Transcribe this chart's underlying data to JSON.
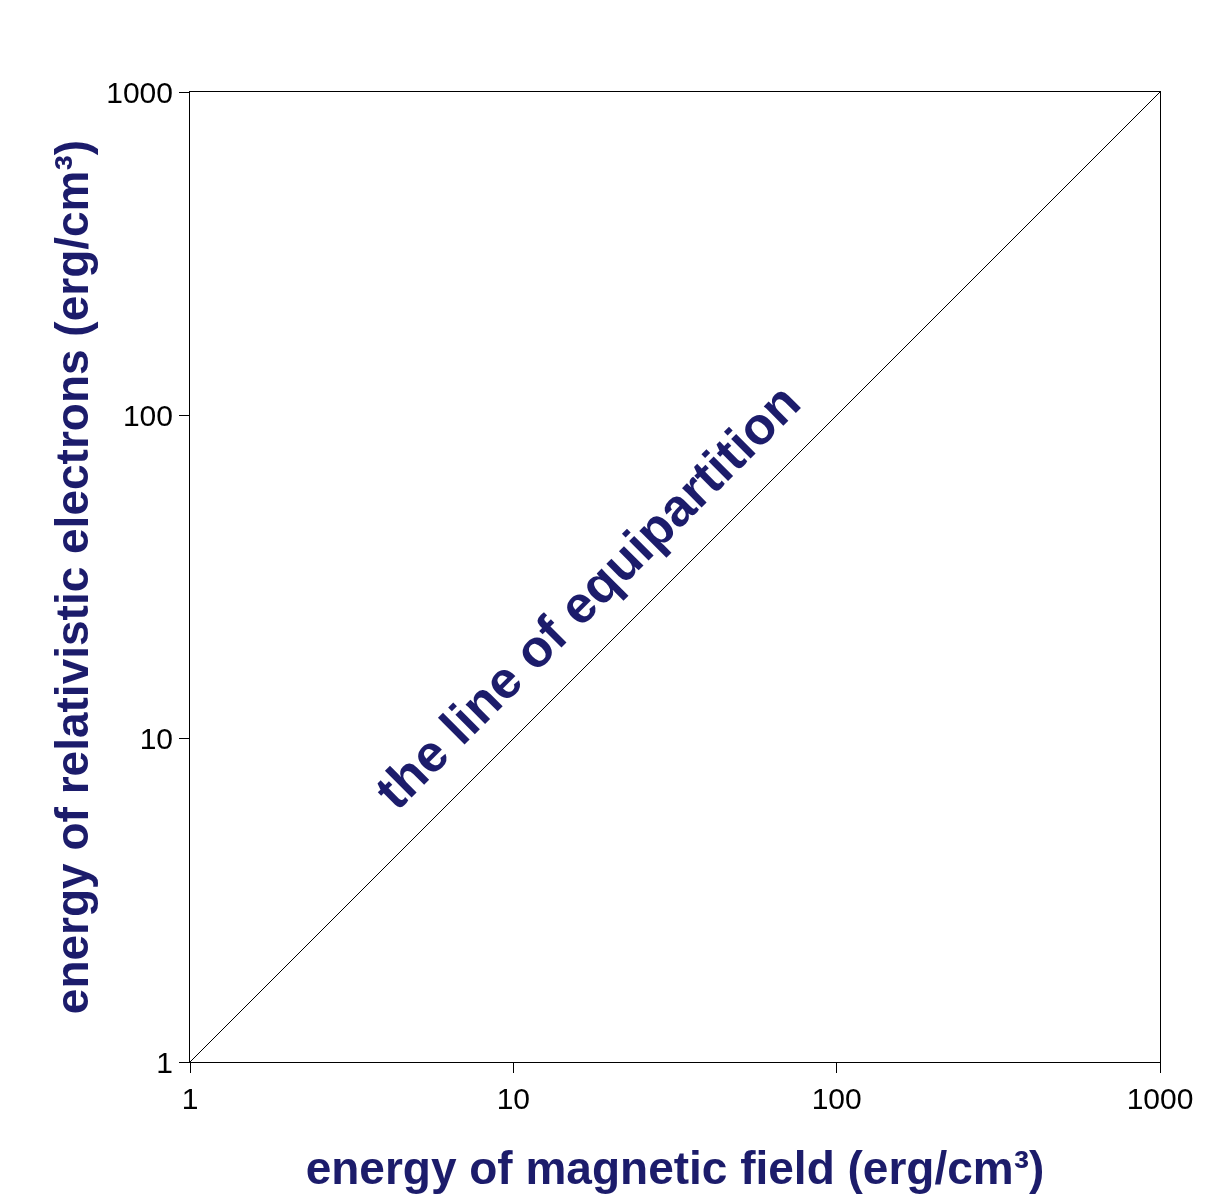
{
  "chart_data": {
    "type": "line",
    "xlabel": "energy of magnetic field (erg/cm³)",
    "ylabel": "energy of relativistic electrons (erg/cm³)",
    "x": [
      1,
      1000
    ],
    "series": [
      {
        "color": "#000000",
        "values": [
          1,
          1000
        ]
      }
    ],
    "log": "xy",
    "xlim": [
      1,
      1000
    ],
    "ylim": [
      1,
      1000
    ],
    "xticks": [
      1,
      10,
      100,
      1000
    ],
    "yticks": [
      1,
      10,
      100,
      1000
    ],
    "grid": false,
    "marker": "none",
    "line_style": "solid",
    "annotations": [
      "the line of equipartition"
    ]
  }
}
